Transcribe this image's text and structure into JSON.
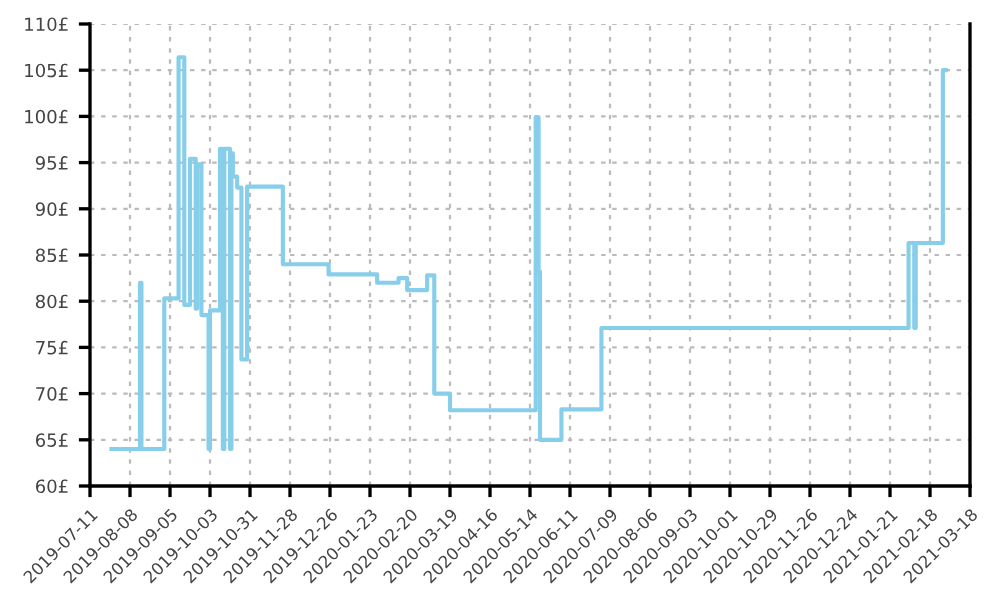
{
  "chart_data": {
    "type": "step",
    "x": [
      "2019-07-26",
      "2019-08-15",
      "2019-08-16",
      "2019-09-01",
      "2019-09-11",
      "2019-09-15",
      "2019-09-19",
      "2019-09-23",
      "2019-09-24",
      "2019-09-27",
      "2019-10-02",
      "2019-10-03",
      "2019-10-05",
      "2019-10-10",
      "2019-10-12",
      "2019-10-13",
      "2019-10-17",
      "2019-10-18",
      "2019-10-19",
      "2019-10-22",
      "2019-10-25",
      "2019-10-29",
      "2019-11-23",
      "2019-12-25",
      "2020-01-28",
      "2020-02-12",
      "2020-02-18",
      "2020-03-03",
      "2020-03-08",
      "2020-03-19",
      "2020-05-18",
      "2020-05-20",
      "2020-05-21",
      "2020-06-05",
      "2020-07-03",
      "2021-02-03",
      "2021-02-07",
      "2021-02-08",
      "2021-02-27",
      "2021-03-01"
    ],
    "series": [
      {
        "color": "#87ceeb",
        "values": [
          64,
          82,
          64,
          80.3,
          106.4,
          79.6,
          95.4,
          79.2,
          94.8,
          78.5,
          64,
          79,
          79,
          96.5,
          64,
          96.5,
          64,
          96,
          93.5,
          92.3,
          73.7,
          92.4,
          84,
          82.9,
          82,
          82.5,
          81.2,
          82.8,
          70,
          68.2,
          99.9,
          83.2,
          65,
          68.3,
          77.1,
          86.3,
          77.1,
          86.3,
          105,
          105
        ]
      }
    ],
    "xlim": [
      "2019-07-11",
      "2021-03-18"
    ],
    "xticks": [
      "2019-07-11",
      "2019-08-08",
      "2019-09-05",
      "2019-10-03",
      "2019-10-31",
      "2019-11-28",
      "2019-12-26",
      "2020-01-23",
      "2020-02-20",
      "2020-03-19",
      "2020-04-16",
      "2020-05-14",
      "2020-06-11",
      "2020-07-09",
      "2020-08-06",
      "2020-09-03",
      "2020-10-01",
      "2020-10-29",
      "2020-11-26",
      "2020-12-24",
      "2021-01-21",
      "2021-02-18",
      "2021-03-18"
    ],
    "ylim": [
      60,
      110
    ],
    "yticks": [
      {
        "value": 60,
        "label": "60£"
      },
      {
        "value": 65,
        "label": "65£"
      },
      {
        "value": 70,
        "label": "70£"
      },
      {
        "value": 75,
        "label": "75£"
      },
      {
        "value": 80,
        "label": "80£"
      },
      {
        "value": 85,
        "label": "85£"
      },
      {
        "value": 90,
        "label": "90£"
      },
      {
        "value": 95,
        "label": "95£"
      },
      {
        "value": 100,
        "label": "100£"
      },
      {
        "value": 105,
        "label": "105£"
      },
      {
        "value": 110,
        "label": "110£"
      }
    ],
    "grid": true,
    "line_style": "solid"
  }
}
